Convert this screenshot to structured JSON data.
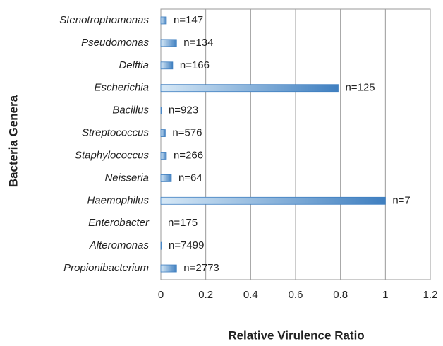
{
  "chart_data": {
    "type": "hbar",
    "x_label": "Relative Virulence Ratio",
    "y_label": "Bacteria Genera",
    "categories": [
      "Stenotrophomonas",
      "Pseudomonas",
      "Delftia",
      "Escherichia",
      "Bacillus",
      "Streptococcus",
      "Staphylococcus",
      "Neisseria",
      "Haemophilus",
      "Enterobacter",
      "Alteromonas",
      "Propionibacterium"
    ],
    "values": [
      0.025,
      0.07,
      0.053,
      0.79,
      0.003,
      0.02,
      0.025,
      0.047,
      1,
      0,
      0.003,
      0.07
    ],
    "bar_labels": [
      "n=147",
      "n=134",
      "n=166",
      "n=125",
      "n=923",
      "n=576",
      "n=266",
      "n=64",
      "n=7",
      "n=175",
      "n=7499",
      "n=2773"
    ],
    "color": "#3f7fc0",
    "xlim": [
      0,
      1.2
    ],
    "xticks": [
      0,
      0.2,
      0.4,
      0.6,
      0.8,
      1,
      1.2
    ],
    "grid": true
  }
}
